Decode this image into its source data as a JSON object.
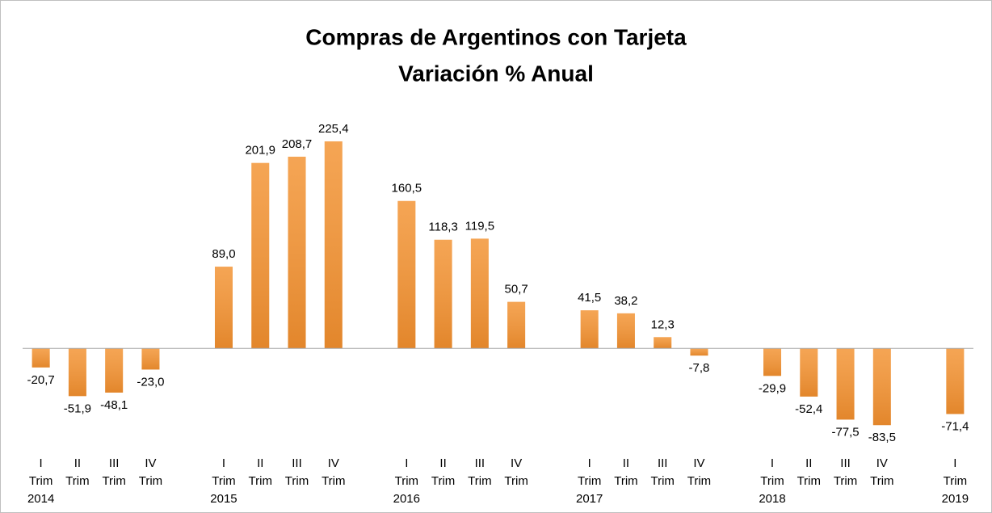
{
  "chart_data": {
    "type": "bar",
    "title": "Compras de Argentinos con Tarjeta",
    "subtitle": "Variación % Anual",
    "categories": [
      [
        "I",
        "Trim",
        "2014"
      ],
      [
        "II",
        "Trim"
      ],
      [
        "III",
        "Trim"
      ],
      [
        "IV",
        "Trim"
      ],
      null,
      [
        "I",
        "Trim",
        "2015"
      ],
      [
        "II",
        "Trim"
      ],
      [
        "III",
        "Trim"
      ],
      [
        "IV",
        "Trim"
      ],
      null,
      [
        "I",
        "Trim",
        "2016"
      ],
      [
        "II",
        "Trim"
      ],
      [
        "III",
        "Trim"
      ],
      [
        "IV",
        "Trim"
      ],
      null,
      [
        "I",
        "Trim",
        "2017"
      ],
      [
        "II",
        "Trim"
      ],
      [
        "III",
        "Trim"
      ],
      [
        "IV",
        "Trim"
      ],
      null,
      [
        "I",
        "Trim",
        "2018"
      ],
      [
        "II",
        "Trim"
      ],
      [
        "III",
        "Trim"
      ],
      [
        "IV",
        "Trim"
      ],
      null,
      [
        "I",
        "Trim",
        "2019"
      ]
    ],
    "values": [
      -20.7,
      -51.9,
      -48.1,
      -23.0,
      null,
      89.0,
      201.9,
      208.7,
      225.4,
      null,
      160.5,
      118.3,
      119.5,
      50.7,
      null,
      41.5,
      38.2,
      12.3,
      -7.8,
      null,
      -29.9,
      -52.4,
      -77.5,
      -83.5,
      null,
      -71.4
    ],
    "value_labels": [
      "-20,7",
      "-51,9",
      "-48,1",
      "-23,0",
      null,
      "89,0",
      "201,9",
      "208,7",
      "225,4",
      null,
      "160,5",
      "118,3",
      "119,5",
      "50,7",
      null,
      "41,5",
      "38,2",
      "12,3",
      "-7,8",
      null,
      "-29,9",
      "-52,4",
      "-77,5",
      "-83,5",
      null,
      "-71,4"
    ],
    "color": "#f39536",
    "ylim": [
      -100,
      250
    ]
  }
}
